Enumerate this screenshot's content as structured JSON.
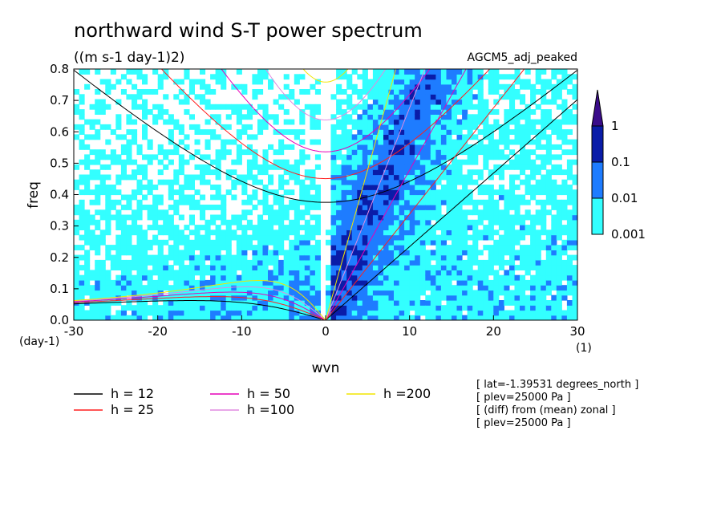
{
  "chart_data": {
    "type": "heatmap",
    "title": "northward wind S-T power spectrum",
    "subtitle": "((m s-1 day-1)2)",
    "dataset": "AGCM5_adj_peaked",
    "xlabel": "wvn",
    "ylabel": "freq",
    "x_unit": "(1)",
    "y_unit": "(day-1)",
    "xlim": [
      -30,
      30
    ],
    "ylim": [
      0,
      0.8
    ],
    "x_ticks": [
      -30,
      -20,
      -10,
      0,
      10,
      20,
      30
    ],
    "x_tick_labels": [
      "-30",
      "-20",
      "-10",
      "0",
      "10",
      "20",
      "30"
    ],
    "y_ticks": [
      0,
      0.1,
      0.2,
      0.3,
      0.4,
      0.5,
      0.6,
      0.7,
      0.8
    ],
    "y_tick_labels": [
      "0.0",
      "0.1",
      "0.2",
      "0.3",
      "0.4",
      "0.5",
      "0.6",
      "0.7",
      "0.8"
    ],
    "colorbar": {
      "levels": [
        "0.001",
        "0.01",
        "0.1",
        "1"
      ],
      "colors": [
        "#33ffff",
        "#1e7cff",
        "#0a1ca8",
        "#3a0c8a"
      ],
      "extend": "max"
    },
    "dispersion_curves": [
      {
        "label": "h = 12",
        "h": 12,
        "color": "#000000"
      },
      {
        "label": "h = 25",
        "h": 25,
        "color": "#ff1f1f"
      },
      {
        "label": "h = 50",
        "h": 50,
        "color": "#e600b8"
      },
      {
        "label": "h =100",
        "h": 100,
        "color": "#e08ae0"
      },
      {
        "label": "h =200",
        "h": 200,
        "color": "#f2e600"
      }
    ],
    "info_lines": [
      "[ lat=-1.39531 degrees_north ]",
      "[ plev=25000 Pa ]",
      "[ (diff) from (mean) zonal ]",
      "[ plev=25000 Pa ]"
    ]
  }
}
